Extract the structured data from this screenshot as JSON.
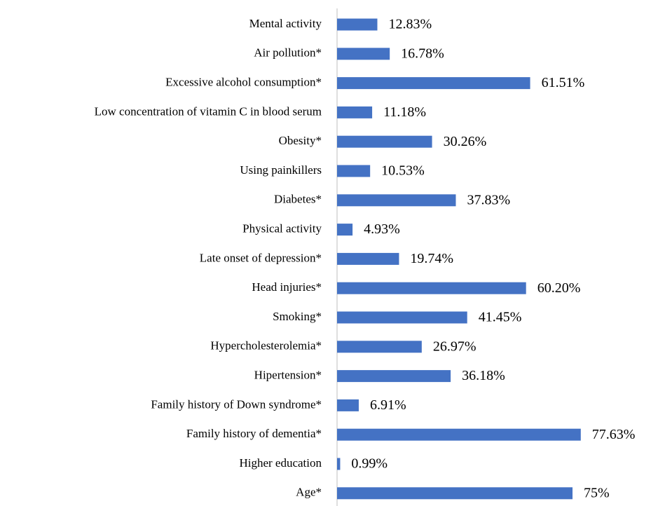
{
  "chart_data": {
    "type": "bar",
    "orientation": "horizontal",
    "categories": [
      "Mental activity",
      "Air pollution*",
      "Excessive alcohol consumption*",
      "Low concentration of vitamin C in blood serum",
      "Obesity*",
      "Using painkillers",
      "Diabetes*",
      "Physical activity",
      "Late onset of depression*",
      "Head injuries*",
      "Smoking*",
      "Hypercholesterolemia*",
      "Hipertension*",
      "Family history of Down syndrome*",
      "Family history of dementia*",
      "Higher education",
      "Age*"
    ],
    "values": [
      12.83,
      16.78,
      61.51,
      11.18,
      30.26,
      10.53,
      37.83,
      4.93,
      19.74,
      60.2,
      41.45,
      26.97,
      36.18,
      6.91,
      77.63,
      0.99,
      75
    ],
    "value_labels": [
      "12.83%",
      "16.78%",
      "61.51%",
      "11.18%",
      "30.26%",
      "10.53%",
      "37.83%",
      "4.93%",
      "19.74%",
      "60.20%",
      "41.45%",
      "26.97%",
      "36.18%",
      "6.91%",
      "77.63%",
      "0.99%",
      "75%"
    ],
    "color": "#4472c4",
    "xlim": [
      0,
      100
    ]
  }
}
